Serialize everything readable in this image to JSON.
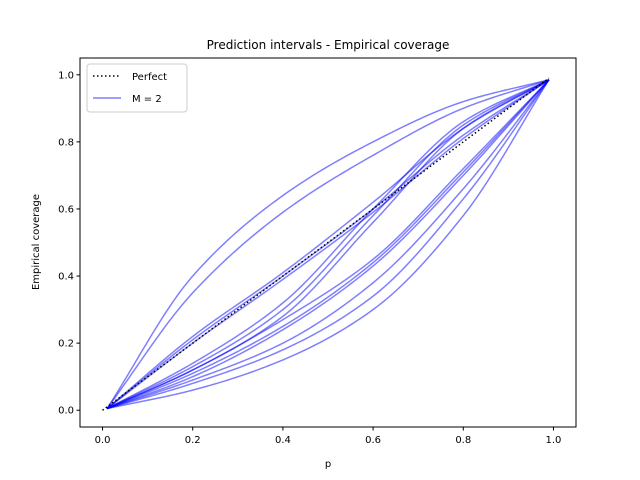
{
  "chart_data": {
    "type": "line",
    "title": "Prediction intervals - Empirical coverage",
    "xlabel": "p",
    "ylabel": "Empirical coverage",
    "xlim": [
      -0.05,
      1.05
    ],
    "ylim": [
      -0.05,
      1.05
    ],
    "xticks": [
      0.0,
      0.2,
      0.4,
      0.6,
      0.8,
      1.0
    ],
    "xtick_labels": [
      "0.0",
      "0.2",
      "0.4",
      "0.6",
      "0.8",
      "1.0"
    ],
    "yticks": [
      0.0,
      0.2,
      0.4,
      0.6,
      0.8,
      1.0
    ],
    "ytick_labels": [
      "0.0",
      "0.2",
      "0.4",
      "0.6",
      "0.8",
      "1.0"
    ],
    "grid": false,
    "legend_position": "top-left",
    "legend": [
      {
        "label": "Perfect",
        "style": "dotted",
        "color": "#000000"
      },
      {
        "label": "M = 2",
        "style": "solid",
        "color": "#0000ff"
      }
    ],
    "reference_line": {
      "name": "Perfect",
      "x": [
        0.0,
        0.99
      ],
      "y": [
        0.0,
        0.99
      ],
      "color": "#000000"
    },
    "curve_family": {
      "name": "M = 2",
      "color": "#0000ff",
      "opacity": 0.5,
      "x_range": [
        0.01,
        0.99
      ],
      "y_start": 0.005,
      "y_end": 0.985,
      "curves": [
        {
          "kind": "concave",
          "y_at_p": [
            [
              0.2,
              0.4
            ],
            [
              0.4,
              0.64
            ],
            [
              0.6,
              0.8
            ],
            [
              0.8,
              0.92
            ]
          ]
        },
        {
          "kind": "concave",
          "y_at_p": [
            [
              0.2,
              0.35
            ],
            [
              0.4,
              0.59
            ],
            [
              0.6,
              0.76
            ],
            [
              0.8,
              0.9
            ]
          ]
        },
        {
          "kind": "concave",
          "y_at_p": [
            [
              0.2,
              0.22
            ],
            [
              0.4,
              0.41
            ],
            [
              0.6,
              0.62
            ],
            [
              0.8,
              0.84
            ]
          ]
        },
        {
          "kind": "concave",
          "y_at_p": [
            [
              0.2,
              0.21
            ],
            [
              0.4,
              0.4
            ],
            [
              0.6,
              0.6
            ],
            [
              0.8,
              0.82
            ]
          ]
        },
        {
          "kind": "concave",
          "y_at_p": [
            [
              0.2,
              0.2
            ],
            [
              0.4,
              0.39
            ],
            [
              0.6,
              0.59
            ],
            [
              0.8,
              0.81
            ]
          ]
        },
        {
          "kind": "sigmoid",
          "y_at_p": [
            [
              0.2,
              0.14
            ],
            [
              0.4,
              0.32
            ],
            [
              0.6,
              0.6
            ],
            [
              0.8,
              0.86
            ]
          ]
        },
        {
          "kind": "sigmoid",
          "y_at_p": [
            [
              0.2,
              0.13
            ],
            [
              0.4,
              0.3
            ],
            [
              0.6,
              0.58
            ],
            [
              0.8,
              0.85
            ]
          ]
        },
        {
          "kind": "sigmoid",
          "y_at_p": [
            [
              0.2,
              0.12
            ],
            [
              0.4,
              0.28
            ],
            [
              0.6,
              0.56
            ],
            [
              0.8,
              0.84
            ]
          ]
        },
        {
          "kind": "convex",
          "y_at_p": [
            [
              0.2,
              0.12
            ],
            [
              0.4,
              0.27
            ],
            [
              0.6,
              0.45
            ],
            [
              0.8,
              0.72
            ]
          ]
        },
        {
          "kind": "convex",
          "y_at_p": [
            [
              0.2,
              0.11
            ],
            [
              0.4,
              0.25
            ],
            [
              0.6,
              0.44
            ],
            [
              0.8,
              0.71
            ]
          ]
        },
        {
          "kind": "convex",
          "y_at_p": [
            [
              0.2,
              0.1
            ],
            [
              0.4,
              0.24
            ],
            [
              0.6,
              0.43
            ],
            [
              0.8,
              0.7
            ]
          ]
        },
        {
          "kind": "convex",
          "y_at_p": [
            [
              0.2,
              0.09
            ],
            [
              0.4,
              0.2
            ],
            [
              0.6,
              0.38
            ],
            [
              0.8,
              0.66
            ]
          ]
        },
        {
          "kind": "convex",
          "y_at_p": [
            [
              0.2,
              0.08
            ],
            [
              0.4,
              0.18
            ],
            [
              0.6,
              0.34
            ],
            [
              0.8,
              0.63
            ]
          ]
        },
        {
          "kind": "convex",
          "y_at_p": [
            [
              0.2,
              0.06
            ],
            [
              0.4,
              0.15
            ],
            [
              0.6,
              0.3
            ],
            [
              0.8,
              0.58
            ]
          ]
        }
      ]
    }
  }
}
